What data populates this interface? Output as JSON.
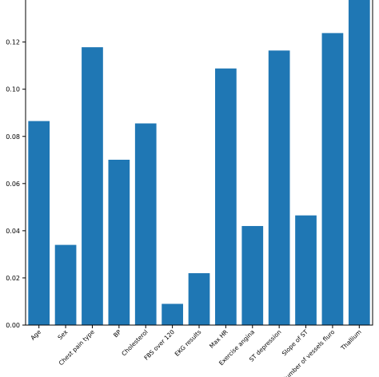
{
  "chart_data": {
    "type": "bar",
    "categories": [
      "Age",
      "Sex",
      "Chest pain type",
      "BP",
      "Cholesterol",
      "FBS over 120",
      "EKG results",
      "Max HR",
      "Exercise angina",
      "ST depression",
      "Slope of ST",
      "Number of vessels fluro",
      "Thallium"
    ],
    "values": [
      0.0865,
      0.034,
      0.1178,
      0.0701,
      0.0855,
      0.009,
      0.022,
      0.1088,
      0.042,
      0.1164,
      0.0465,
      0.1238,
      0.1385
    ],
    "yticks": [
      "0.00",
      "0.02",
      "0.04",
      "0.06",
      "0.08",
      "0.10",
      "0.12"
    ],
    "ylim": [
      0,
      0.1385
    ],
    "bar_color": "#1f77b4",
    "grid": false
  }
}
